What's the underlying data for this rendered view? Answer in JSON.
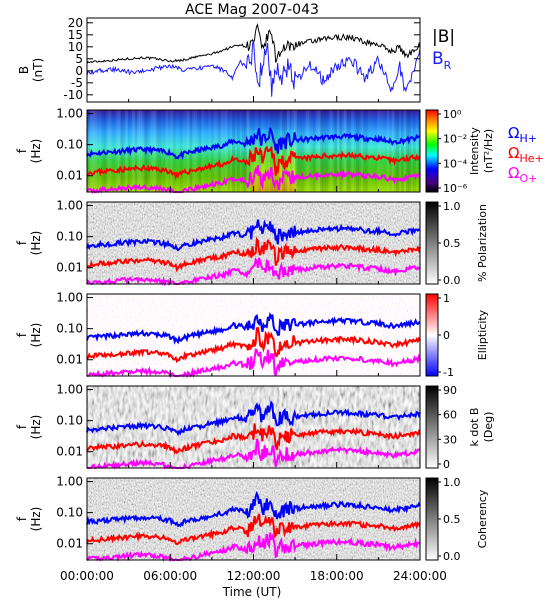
{
  "chart_data": {
    "type": "line",
    "title": "ACE Mag 2007-043",
    "xlabel": "Time (UT)",
    "xtick_labels": [
      "00:00:00",
      "06:00:00",
      "12:00:00",
      "18:00:00",
      "24:00:00"
    ],
    "xlim_hours": [
      0,
      24
    ],
    "colors": {
      "B_total": "#000000",
      "B_R": "#1a1aff",
      "gyro_H": "#0000ff",
      "gyro_He": "#ff0000",
      "gyro_O": "#ff00ff"
    },
    "top_panel": {
      "ylabel_1": "B",
      "ylabel_2": "(nT)",
      "ylim": [
        -13,
        22
      ],
      "ytick_labels": [
        "20",
        "15",
        "10",
        "5",
        "0",
        "-5",
        "-10"
      ],
      "yticks": [
        20,
        15,
        10,
        5,
        0,
        -5,
        -10
      ],
      "legend": [
        "|B|",
        "B"
      ],
      "legend_sub": "R",
      "series": [
        {
          "key": "B_total",
          "x": [
            0,
            1,
            2,
            3,
            4,
            5,
            6,
            7,
            8,
            9,
            10,
            10.5,
            11,
            11.5,
            12,
            12.3,
            12.6,
            13,
            13.3,
            13.6,
            14,
            14.5,
            15,
            16,
            17,
            18,
            19,
            20,
            21,
            22,
            22.5,
            23,
            24
          ],
          "values": [
            3.5,
            4,
            4.5,
            5,
            5.5,
            5,
            4,
            4.5,
            6,
            7,
            9,
            10,
            11,
            10,
            12,
            18,
            8,
            14,
            16,
            5,
            9,
            10,
            11,
            12,
            13,
            14,
            14,
            12,
            11,
            8,
            10,
            6,
            11
          ]
        },
        {
          "key": "B_R",
          "x": [
            0,
            1,
            2,
            3,
            4,
            5,
            6,
            7,
            8,
            9,
            10,
            10.5,
            11,
            11.5,
            12,
            12.3,
            12.6,
            13,
            13.3,
            13.6,
            14,
            14.5,
            15,
            16,
            17,
            18,
            19,
            20,
            21,
            22,
            22.5,
            23,
            24
          ],
          "values": [
            -1,
            0,
            0.5,
            -0.5,
            0,
            1,
            2,
            0,
            1,
            2,
            0,
            -3,
            4,
            1,
            8,
            -10,
            3,
            10,
            -8,
            2,
            -6,
            4,
            -5,
            3,
            -4,
            2,
            5,
            -3,
            4,
            -9,
            3,
            -10,
            8
          ]
        }
      ]
    },
    "freq_panels": {
      "ylabel_1": "f",
      "ylabel_2": "(Hz)",
      "ytick_labels": [
        "1.00",
        "0.10",
        "0.01"
      ],
      "ylim_hz": [
        0.003,
        1.3
      ],
      "gyro_labels": {
        "H": "Ω",
        "H_sub": "H+",
        "He": "Ω",
        "He_sub": "He+",
        "O": "Ω",
        "O_sub": "O+"
      },
      "gyrofreq_H_hz": {
        "x": [
          0,
          1,
          2,
          3,
          4,
          5,
          6,
          6.5,
          7,
          8,
          9,
          10,
          10.5,
          11,
          11.5,
          12,
          12.3,
          12.6,
          13,
          13.3,
          13.6,
          14,
          14.5,
          15,
          16,
          17,
          18,
          19,
          20,
          21,
          22,
          23,
          24
        ],
        "values": [
          0.05,
          0.055,
          0.06,
          0.065,
          0.07,
          0.065,
          0.055,
          0.04,
          0.05,
          0.065,
          0.08,
          0.1,
          0.13,
          0.12,
          0.1,
          0.16,
          0.25,
          0.12,
          0.2,
          0.22,
          0.07,
          0.12,
          0.13,
          0.14,
          0.15,
          0.17,
          0.18,
          0.18,
          0.16,
          0.15,
          0.12,
          0.14,
          0.17
        ]
      },
      "panels": [
        {
          "name": "intensity",
          "colorbar_title_1": "Intensity",
          "colorbar_title_2": "(nT²/Hz)",
          "colorbar_ticks": [
            "10⁰",
            "10⁻²",
            "10⁻⁴",
            "10⁻⁶"
          ],
          "scale": "rainbow"
        },
        {
          "name": "polarization",
          "colorbar_title_1": "% Polarization",
          "colorbar_title_2": "",
          "colorbar_ticks": [
            "1.0",
            "0.5",
            "0.0"
          ],
          "scale": "gray"
        },
        {
          "name": "ellipticity",
          "colorbar_title_1": "Ellipticity",
          "colorbar_title_2": "",
          "colorbar_ticks": [
            "1",
            "0",
            "-1"
          ],
          "scale": "bwr"
        },
        {
          "name": "kdotb",
          "colorbar_title_1": "k dot B",
          "colorbar_title_2": "(Deg)",
          "colorbar_ticks": [
            "90",
            "60",
            "30",
            "0"
          ],
          "scale": "gray"
        },
        {
          "name": "coherency",
          "colorbar_title_1": "Coherency",
          "colorbar_title_2": "",
          "colorbar_ticks": [
            "1.0",
            "0.5",
            "0.0"
          ],
          "scale": "gray"
        }
      ]
    }
  }
}
